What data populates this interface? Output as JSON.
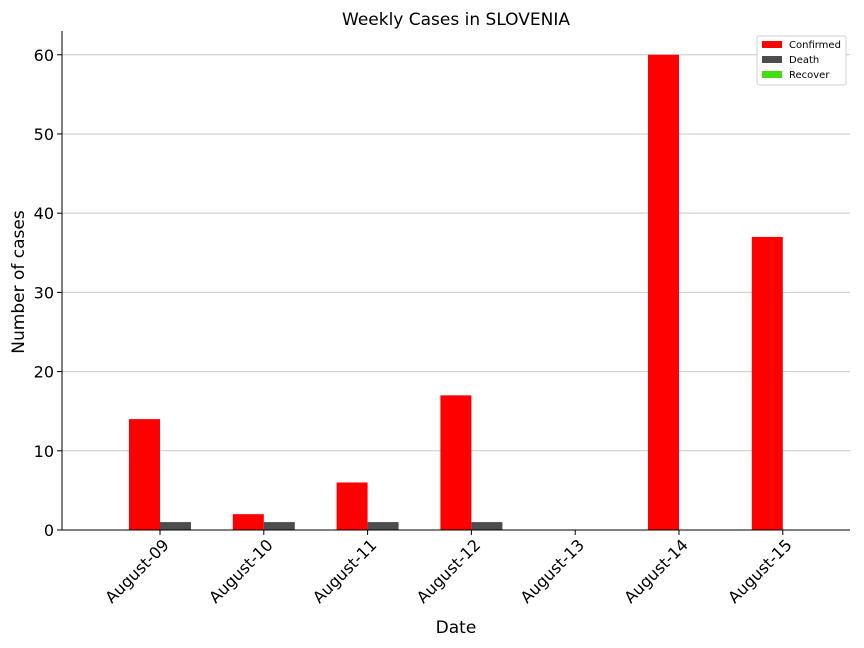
{
  "chart_data": {
    "type": "bar",
    "title": "Weekly Cases in SLOVENIA",
    "xlabel": "Date",
    "ylabel": "Number of cases",
    "categories": [
      "August-09",
      "August-10",
      "August-11",
      "August-12",
      "August-13",
      "August-14",
      "August-15"
    ],
    "series": [
      {
        "name": "Confirmed",
        "color": "#ff0000",
        "values": [
          14,
          2,
          6,
          17,
          0,
          60,
          37
        ]
      },
      {
        "name": "Death",
        "color": "#4d4d4d",
        "values": [
          1,
          1,
          1,
          1,
          0,
          0,
          0
        ]
      },
      {
        "name": "Recover",
        "color": "#44dd11",
        "values": [
          0,
          0,
          0,
          0,
          0,
          0,
          0
        ]
      }
    ],
    "ylim": [
      0,
      63
    ],
    "yticks": [
      0,
      10,
      20,
      30,
      40,
      50,
      60
    ],
    "grid": "horizontal",
    "legend_position": "top-right"
  }
}
